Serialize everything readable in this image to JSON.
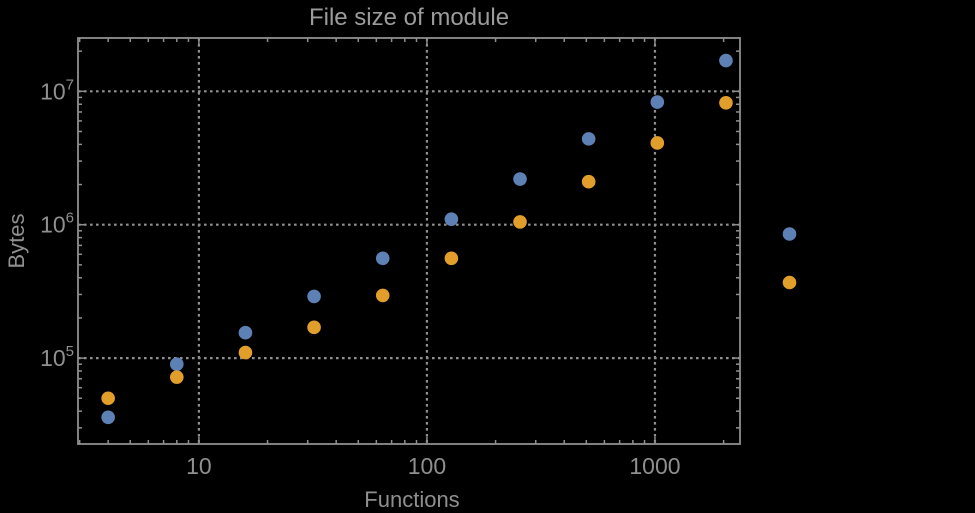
{
  "chart_data": {
    "type": "scatter",
    "title": "File size of module",
    "xlabel": "Functions",
    "ylabel": "Bytes",
    "x_scale": "log10",
    "y_scale": "log10",
    "grid": "dashed gridlines at decade ticks, both axes",
    "x_range": [
      2.95,
      2360
    ],
    "y_range": [
      22700,
      25100000
    ],
    "x_ticks": [
      {
        "v": 10,
        "label": "10"
      },
      {
        "v": 100,
        "label": "100"
      },
      {
        "v": 1000,
        "label": "1000"
      }
    ],
    "y_ticks": [
      {
        "v": 100000,
        "base": "10",
        "exp": "5"
      },
      {
        "v": 1000000,
        "base": "10",
        "exp": "6"
      },
      {
        "v": 10000000,
        "base": "10",
        "exp": "7"
      }
    ],
    "x": [
      4,
      8,
      16,
      32,
      64,
      128,
      256,
      512,
      1024,
      2048
    ],
    "series": [
      {
        "name": "blue",
        "color": "#5e81b5",
        "values": [
          36000,
          90000,
          155000,
          290000,
          560000,
          1100000,
          2200000,
          4400000,
          8300000,
          17000000
        ]
      },
      {
        "name": "orange",
        "color": "#e29e2b",
        "values": [
          50000,
          72000,
          110000,
          170000,
          295000,
          560000,
          1050000,
          2100000,
          4100000,
          8200000
        ]
      }
    ],
    "legend": {
      "position": "right-outside",
      "visible_labels": "",
      "markers": [
        {
          "series": "blue",
          "color": "#5e81b5"
        },
        {
          "series": "orange",
          "color": "#e29e2b"
        }
      ]
    }
  },
  "colors": {
    "background": "#000000",
    "frame": "#8f8f8f",
    "grid": "#8f8f8f",
    "tick_text": "#8f8f8f",
    "title_text": "#9b9b9b",
    "series_blue": "#5e81b5",
    "series_orange": "#e29e2b"
  }
}
